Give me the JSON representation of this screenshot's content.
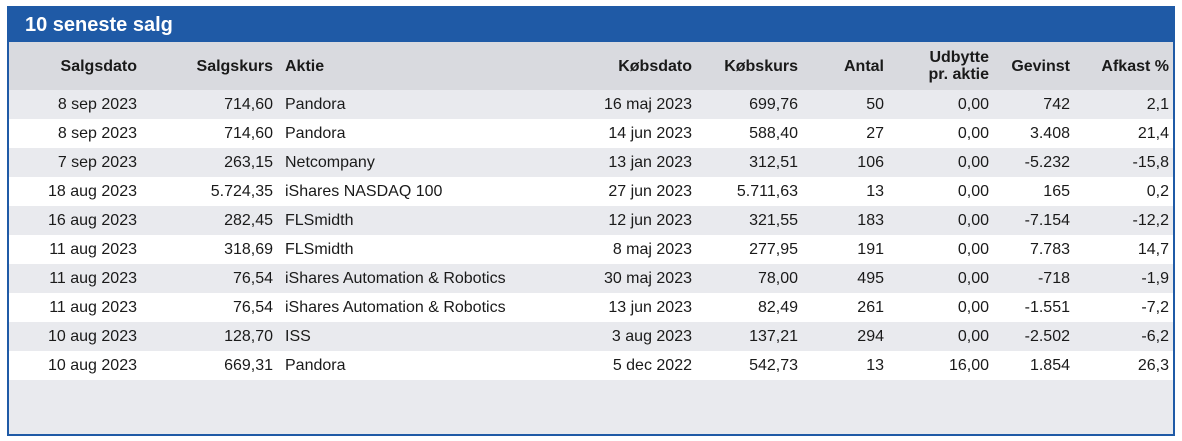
{
  "table": {
    "title": "10 seneste salg",
    "columns": [
      "Salgsdato",
      "Salgskurs",
      "Aktie",
      "Købsdato",
      "Købskurs",
      "Antal",
      "Udbytte\npr. aktie",
      "Gevinst",
      "Afkast %"
    ],
    "rows": [
      [
        "8 sep 2023",
        "714,60",
        "Pandora",
        "16 maj 2023",
        "699,76",
        "50",
        "0,00",
        "742",
        "2,1"
      ],
      [
        "8 sep 2023",
        "714,60",
        "Pandora",
        "14 jun 2023",
        "588,40",
        "27",
        "0,00",
        "3.408",
        "21,4"
      ],
      [
        "7 sep 2023",
        "263,15",
        "Netcompany",
        "13 jan 2023",
        "312,51",
        "106",
        "0,00",
        "-5.232",
        "-15,8"
      ],
      [
        "18 aug 2023",
        "5.724,35",
        "iShares NASDAQ 100",
        "27 jun 2023",
        "5.711,63",
        "13",
        "0,00",
        "165",
        "0,2"
      ],
      [
        "16 aug 2023",
        "282,45",
        "FLSmidth",
        "12 jun 2023",
        "321,55",
        "183",
        "0,00",
        "-7.154",
        "-12,2"
      ],
      [
        "11 aug 2023",
        "318,69",
        "FLSmidth",
        "8 maj 2023",
        "277,95",
        "191",
        "0,00",
        "7.783",
        "14,7"
      ],
      [
        "11 aug 2023",
        "76,54",
        "iShares Automation & Robotics",
        "30 maj 2023",
        "78,00",
        "495",
        "0,00",
        "-718",
        "-1,9"
      ],
      [
        "11 aug 2023",
        "76,54",
        "iShares Automation & Robotics",
        "13 jun 2023",
        "82,49",
        "261",
        "0,00",
        "-1.551",
        "-7,2"
      ],
      [
        "10 aug 2023",
        "128,70",
        "ISS",
        "3 aug 2023",
        "137,21",
        "294",
        "0,00",
        "-2.502",
        "-6,2"
      ],
      [
        "10 aug 2023",
        "669,31",
        "Pandora",
        "5 dec 2022",
        "542,73",
        "13",
        "16,00",
        "1.854",
        "26,3"
      ]
    ]
  },
  "colors": {
    "accent": "#1f5aa6",
    "header_bg": "#d9dadf",
    "row_shaded": "#e9eaee",
    "row_plain": "#ffffff"
  }
}
